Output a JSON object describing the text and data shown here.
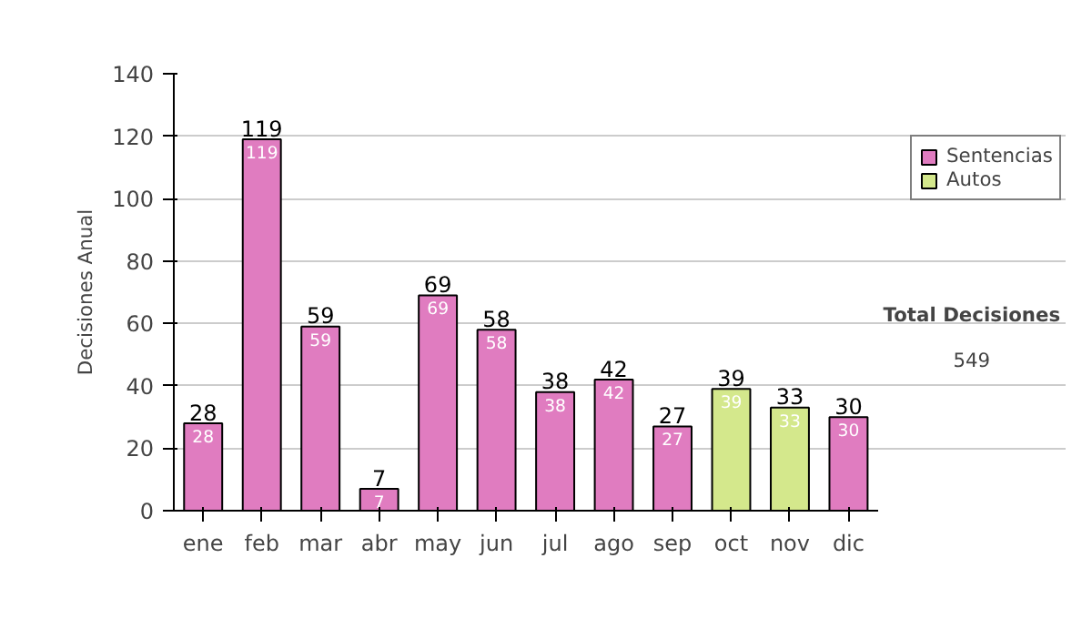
{
  "chart_data": {
    "type": "bar",
    "ylabel": "Decisiones Anual",
    "categories": [
      "ene",
      "feb",
      "mar",
      "abr",
      "may",
      "jun",
      "jul",
      "ago",
      "sep",
      "oct",
      "nov",
      "dic"
    ],
    "series": [
      {
        "name": "Sentencias",
        "color": "#e07cc0",
        "values": [
          28,
          119,
          59,
          7,
          69,
          58,
          38,
          42,
          27,
          null,
          null,
          30
        ]
      },
      {
        "name": "Autos",
        "color": "#d4e88c",
        "values": [
          null,
          null,
          null,
          null,
          null,
          null,
          null,
          null,
          null,
          39,
          33,
          null
        ]
      }
    ],
    "data_labels": true,
    "totals": [
      "28",
      "119",
      "59",
      "7",
      "69",
      "58",
      "38",
      "42",
      "27",
      "39",
      "33",
      "30"
    ],
    "ylim": [
      0,
      140
    ],
    "yticks": [
      0,
      20,
      40,
      60,
      80,
      100,
      120,
      140
    ],
    "grid": "y",
    "legend": "right",
    "annotations": [
      "Total Decisiones",
      "549"
    ]
  }
}
